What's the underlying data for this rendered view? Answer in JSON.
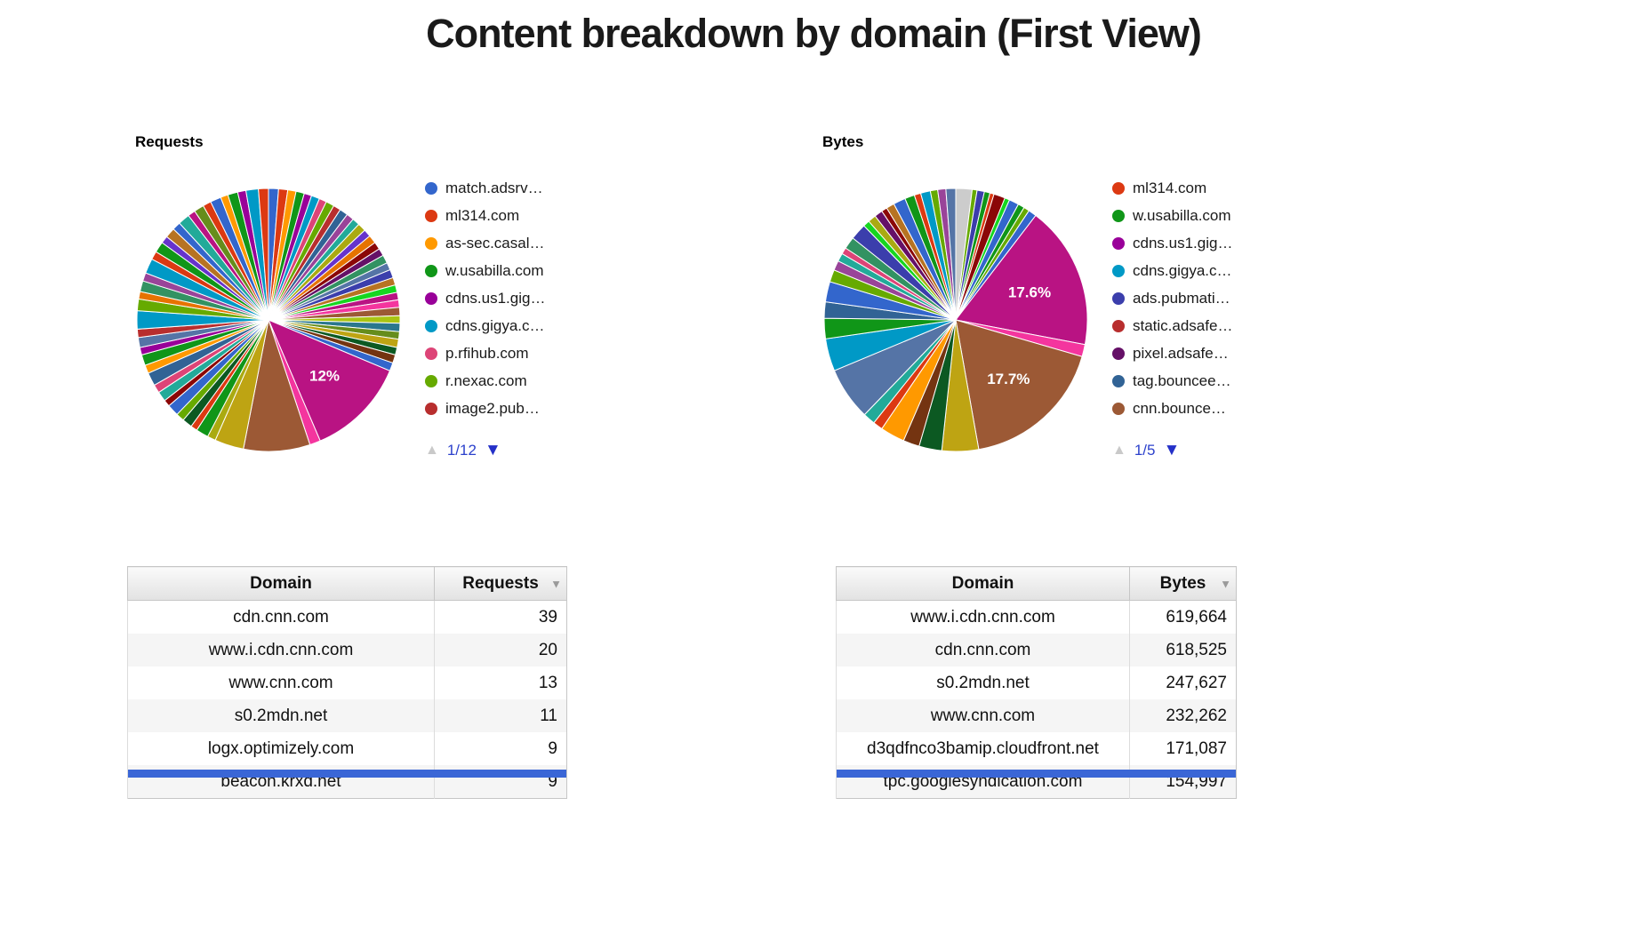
{
  "page": {
    "title": "Content breakdown by domain (First View)"
  },
  "colors": {
    "pagination_active": "#2c41cc",
    "pagination_disabled": "#c9c9c9",
    "selected_row_blue": "#3a66d6",
    "percent_label": "#ffffff"
  },
  "chart_data": [
    {
      "type": "pie",
      "title": "Requests",
      "legend_position": "right",
      "pagination": {
        "prev_icon": "▲",
        "page": "1/12",
        "next_icon": "▼"
      },
      "legend": [
        {
          "label": "match.adsrv…",
          "color": "#3366CC"
        },
        {
          "label": "ml314.com",
          "color": "#DC3912"
        },
        {
          "label": "as-sec.casal…",
          "color": "#FF9900"
        },
        {
          "label": "w.usabilla.com",
          "color": "#109618"
        },
        {
          "label": "cdns.us1.gig…",
          "color": "#990099"
        },
        {
          "label": "cdns.gigya.c…",
          "color": "#0099C6"
        },
        {
          "label": "p.rfihub.com",
          "color": "#DD4477"
        },
        {
          "label": "r.nexac.com",
          "color": "#66AA00"
        },
        {
          "label": "image2.pub…",
          "color": "#B82E2E"
        }
      ],
      "slices": [
        [
          1.2,
          "#3366CC"
        ],
        [
          1.1,
          "#DC3912"
        ],
        [
          1.0,
          "#FF9900"
        ],
        [
          1.0,
          "#109618"
        ],
        [
          0.9,
          "#990099"
        ],
        [
          1.0,
          "#0099C6"
        ],
        [
          0.9,
          "#DD4477"
        ],
        [
          1.0,
          "#66AA00"
        ],
        [
          0.9,
          "#B82E2E"
        ],
        [
          1.0,
          "#316395"
        ],
        [
          0.9,
          "#994499"
        ],
        [
          0.9,
          "#22AA99"
        ],
        [
          1.0,
          "#AAAA11"
        ],
        [
          0.9,
          "#6633CC"
        ],
        [
          1.0,
          "#E67300"
        ],
        [
          0.9,
          "#8B0707"
        ],
        [
          0.9,
          "#651067"
        ],
        [
          1.0,
          "#329262"
        ],
        [
          0.9,
          "#5574A6"
        ],
        [
          1.0,
          "#3B3EAC"
        ],
        [
          0.9,
          "#B77322"
        ],
        [
          0.9,
          "#16D620"
        ],
        [
          0.9,
          "#B91383"
        ],
        [
          0.9,
          "#F4359E"
        ],
        [
          1.0,
          "#9C5935"
        ],
        [
          0.9,
          "#A9C413"
        ],
        [
          1.0,
          "#2A778D"
        ],
        [
          0.9,
          "#668D1C"
        ],
        [
          1.0,
          "#BEA413"
        ],
        [
          0.9,
          "#0C5922"
        ],
        [
          1.0,
          "#743411"
        ],
        [
          1.0,
          "#3366CC"
        ],
        [
          12,
          "#B91383",
          "12%"
        ],
        [
          1.3,
          "#F4359E"
        ],
        [
          8,
          "#9C5935"
        ],
        [
          3.5,
          "#BEA413"
        ],
        [
          1.0,
          "#AAAA11"
        ],
        [
          1.5,
          "#109618"
        ],
        [
          0.8,
          "#DC3912"
        ],
        [
          1.2,
          "#0C5922"
        ],
        [
          1.0,
          "#66AA00"
        ],
        [
          1.4,
          "#3366CC"
        ],
        [
          0.8,
          "#8B0707"
        ],
        [
          1.2,
          "#22AA99"
        ],
        [
          1.0,
          "#DD4477"
        ],
        [
          1.6,
          "#316395"
        ],
        [
          1.0,
          "#FF9900"
        ],
        [
          1.3,
          "#109618"
        ],
        [
          0.9,
          "#990099"
        ],
        [
          1.2,
          "#5574A6"
        ],
        [
          1.0,
          "#B82E2E"
        ],
        [
          2.2,
          "#0099C6"
        ],
        [
          1.4,
          "#66AA00"
        ],
        [
          0.9,
          "#E67300"
        ],
        [
          1.3,
          "#329262"
        ],
        [
          1.0,
          "#994499"
        ],
        [
          1.8,
          "#0099C6"
        ],
        [
          1.0,
          "#DC3912"
        ],
        [
          1.3,
          "#109618"
        ],
        [
          0.9,
          "#6633CC"
        ],
        [
          1.2,
          "#B77322"
        ],
        [
          1.0,
          "#3366CC"
        ],
        [
          1.4,
          "#22AA99"
        ],
        [
          0.9,
          "#B91383"
        ],
        [
          1.2,
          "#668D1C"
        ],
        [
          1.0,
          "#DC3912"
        ],
        [
          1.3,
          "#3366CC"
        ],
        [
          0.9,
          "#FF9900"
        ],
        [
          1.2,
          "#109618"
        ],
        [
          1.0,
          "#990099"
        ],
        [
          1.5,
          "#0099C6"
        ],
        [
          1.2,
          "#DC3912"
        ]
      ]
    },
    {
      "type": "pie",
      "title": "Bytes",
      "legend_position": "right",
      "pagination": {
        "prev_icon": "▲",
        "page": "1/5",
        "next_icon": "▼"
      },
      "legend": [
        {
          "label": "ml314.com",
          "color": "#DC3912"
        },
        {
          "label": "w.usabilla.com",
          "color": "#109618"
        },
        {
          "label": "cdns.us1.gig…",
          "color": "#990099"
        },
        {
          "label": "cdns.gigya.c…",
          "color": "#0099C6"
        },
        {
          "label": "ads.pubmati…",
          "color": "#3B3EAC"
        },
        {
          "label": "static.adsafe…",
          "color": "#B82E2E"
        },
        {
          "label": "pixel.adsafe…",
          "color": "#651067"
        },
        {
          "label": "tag.bouncee…",
          "color": "#316395"
        },
        {
          "label": "cnn.bounce…",
          "color": "#9C5935"
        }
      ],
      "slices": [
        [
          2.0,
          "#CCCCCC"
        ],
        [
          0.6,
          "#66AA00"
        ],
        [
          0.9,
          "#3B3EAC"
        ],
        [
          0.7,
          "#109618"
        ],
        [
          0.5,
          "#DC3912"
        ],
        [
          1.4,
          "#8B0707"
        ],
        [
          0.6,
          "#16D620"
        ],
        [
          1.2,
          "#3366CC"
        ],
        [
          0.8,
          "#109618"
        ],
        [
          0.7,
          "#66AA00"
        ],
        [
          1.0,
          "#3366CC"
        ],
        [
          17.6,
          "#B91383",
          "17.6%"
        ],
        [
          1.5,
          "#F4359E"
        ],
        [
          17.7,
          "#9C5935",
          "17.7%"
        ],
        [
          4.5,
          "#BEA413"
        ],
        [
          2.8,
          "#0C5922"
        ],
        [
          2.0,
          "#743411"
        ],
        [
          3.0,
          "#FF9900"
        ],
        [
          1.2,
          "#DC3912"
        ],
        [
          1.5,
          "#22AA99"
        ],
        [
          6.5,
          "#5574A6"
        ],
        [
          4.0,
          "#0099C6"
        ],
        [
          2.5,
          "#109618"
        ],
        [
          2.0,
          "#316395"
        ],
        [
          2.5,
          "#3366CC"
        ],
        [
          1.5,
          "#66AA00"
        ],
        [
          1.2,
          "#994499"
        ],
        [
          1.0,
          "#22AA99"
        ],
        [
          0.8,
          "#DD4477"
        ],
        [
          1.5,
          "#329262"
        ],
        [
          2.0,
          "#3B3EAC"
        ],
        [
          0.8,
          "#16D620"
        ],
        [
          1.0,
          "#AAAA11"
        ],
        [
          1.0,
          "#651067"
        ],
        [
          0.7,
          "#8B0707"
        ],
        [
          1.0,
          "#B77322"
        ],
        [
          1.5,
          "#3366CC"
        ],
        [
          1.2,
          "#109618"
        ],
        [
          0.8,
          "#DC3912"
        ],
        [
          1.2,
          "#0099C6"
        ],
        [
          0.9,
          "#66AA00"
        ],
        [
          1.0,
          "#994499"
        ],
        [
          1.2,
          "#5574A6"
        ]
      ]
    }
  ],
  "tables": {
    "requests": {
      "headers": [
        "Domain",
        "Requests"
      ],
      "sort_icon": "▼",
      "rows": [
        [
          "cdn.cnn.com",
          "39"
        ],
        [
          "www.i.cdn.cnn.com",
          "20"
        ],
        [
          "www.cnn.com",
          "13"
        ],
        [
          "s0.2mdn.net",
          "11"
        ],
        [
          "logx.optimizely.com",
          "9"
        ],
        [
          "beacon.krxd.net",
          "9"
        ]
      ]
    },
    "bytes": {
      "headers": [
        "Domain",
        "Bytes"
      ],
      "sort_icon": "▼",
      "rows": [
        [
          "www.i.cdn.cnn.com",
          "619,664"
        ],
        [
          "cdn.cnn.com",
          "618,525"
        ],
        [
          "s0.2mdn.net",
          "247,627"
        ],
        [
          "www.cnn.com",
          "232,262"
        ],
        [
          "d3qdfnco3bamip.cloudfront.net",
          "171,087"
        ],
        [
          "tpc.googlesyndication.com",
          "154,997"
        ]
      ]
    }
  }
}
